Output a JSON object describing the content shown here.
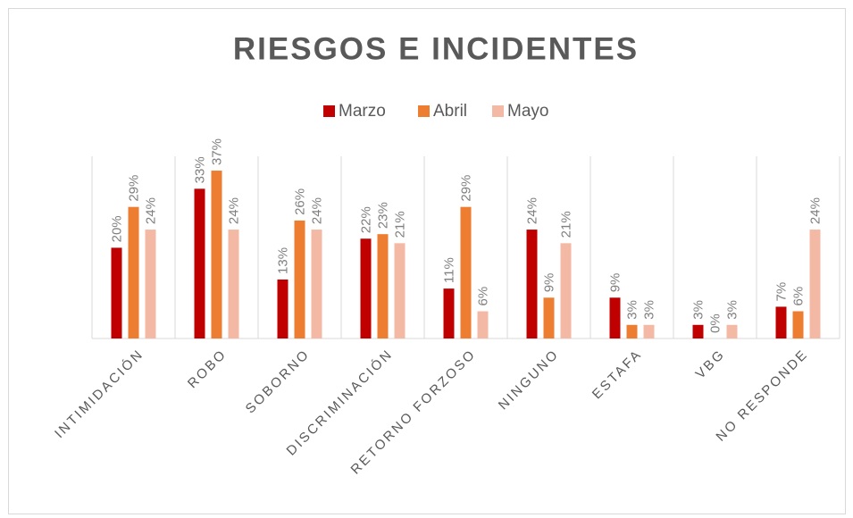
{
  "chart_data": {
    "type": "bar",
    "title": "RIESGOS E INCIDENTES",
    "categories": [
      "INTIMIDACIÓN",
      "ROBO",
      "SOBORNO",
      "DISCRIMINACIÓN",
      "RETORNO FORZOSO",
      "NINGUNO",
      "ESTAFA",
      "VBG",
      "NO RESPONDE"
    ],
    "series": [
      {
        "name": "Marzo",
        "color": "#c00000",
        "values": [
          20,
          33,
          13,
          22,
          11,
          24,
          9,
          3,
          7
        ],
        "value_labels": [
          "20%",
          "33%",
          "13%",
          "22%",
          "11%",
          "24%",
          "9%",
          "3%",
          "7%"
        ]
      },
      {
        "name": "Abril",
        "color": "#ed7d31",
        "values": [
          29,
          37,
          26,
          23,
          29,
          9,
          3,
          0,
          6
        ],
        "value_labels": [
          "29%",
          "37%",
          "26%",
          "23%",
          "29%",
          "9%",
          "3%",
          "0%",
          "6%"
        ]
      },
      {
        "name": "Mayo",
        "color": "#f4b9a5",
        "values": [
          24,
          24,
          24,
          21,
          6,
          21,
          3,
          3,
          24
        ],
        "value_labels": [
          "24%",
          "24%",
          "24%",
          "21%",
          "6%",
          "21%",
          "3%",
          "3%",
          "24%"
        ]
      }
    ],
    "legend": "top"
  }
}
